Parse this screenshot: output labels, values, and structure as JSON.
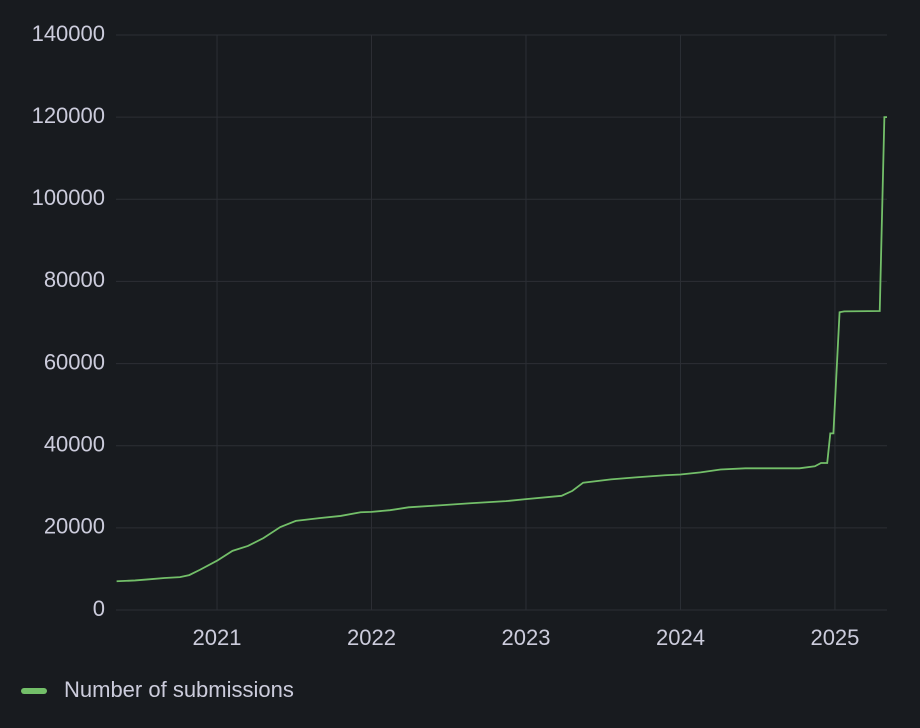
{
  "chart_data": {
    "type": "line",
    "series": [
      {
        "name": "Number of submissions",
        "color": "#73bf69",
        "x": [
          2020.35,
          2020.47,
          2020.57,
          2020.66,
          2020.76,
          2020.82,
          2020.89,
          2021.0,
          2021.1,
          2021.2,
          2021.3,
          2021.41,
          2021.51,
          2021.67,
          2021.8,
          2021.93,
          2022.0,
          2022.12,
          2022.24,
          2022.45,
          2022.64,
          2022.87,
          2023.0,
          2023.23,
          2023.3,
          2023.37,
          2023.55,
          2023.71,
          2023.9,
          2024.0,
          2024.13,
          2024.26,
          2024.42,
          2024.77,
          2024.87,
          2024.91,
          2024.95,
          2024.97,
          2024.99,
          2025.03,
          2025.06,
          2025.29,
          2025.32,
          2025.337
        ],
        "values": [
          7000,
          7200,
          7500,
          7800,
          8000,
          8500,
          9800,
          12000,
          14400,
          15600,
          17500,
          20200,
          21700,
          22400,
          22900,
          23800,
          23900,
          24300,
          25000,
          25500,
          26000,
          26500,
          27000,
          27800,
          29000,
          31000,
          31800,
          32300,
          32800,
          33000,
          33500,
          34200,
          34500,
          34500,
          35000,
          35800,
          35800,
          43000,
          43000,
          72500,
          72700,
          72800,
          120000,
          120000
        ]
      }
    ],
    "xlim": [
      2020.346,
      2025.337
    ],
    "xticks": [
      2021,
      2022,
      2023,
      2024,
      2025
    ],
    "ylim": [
      0,
      140000
    ],
    "yticks": [
      0,
      20000,
      40000,
      60000,
      80000,
      100000,
      120000,
      140000
    ],
    "grid": true
  }
}
